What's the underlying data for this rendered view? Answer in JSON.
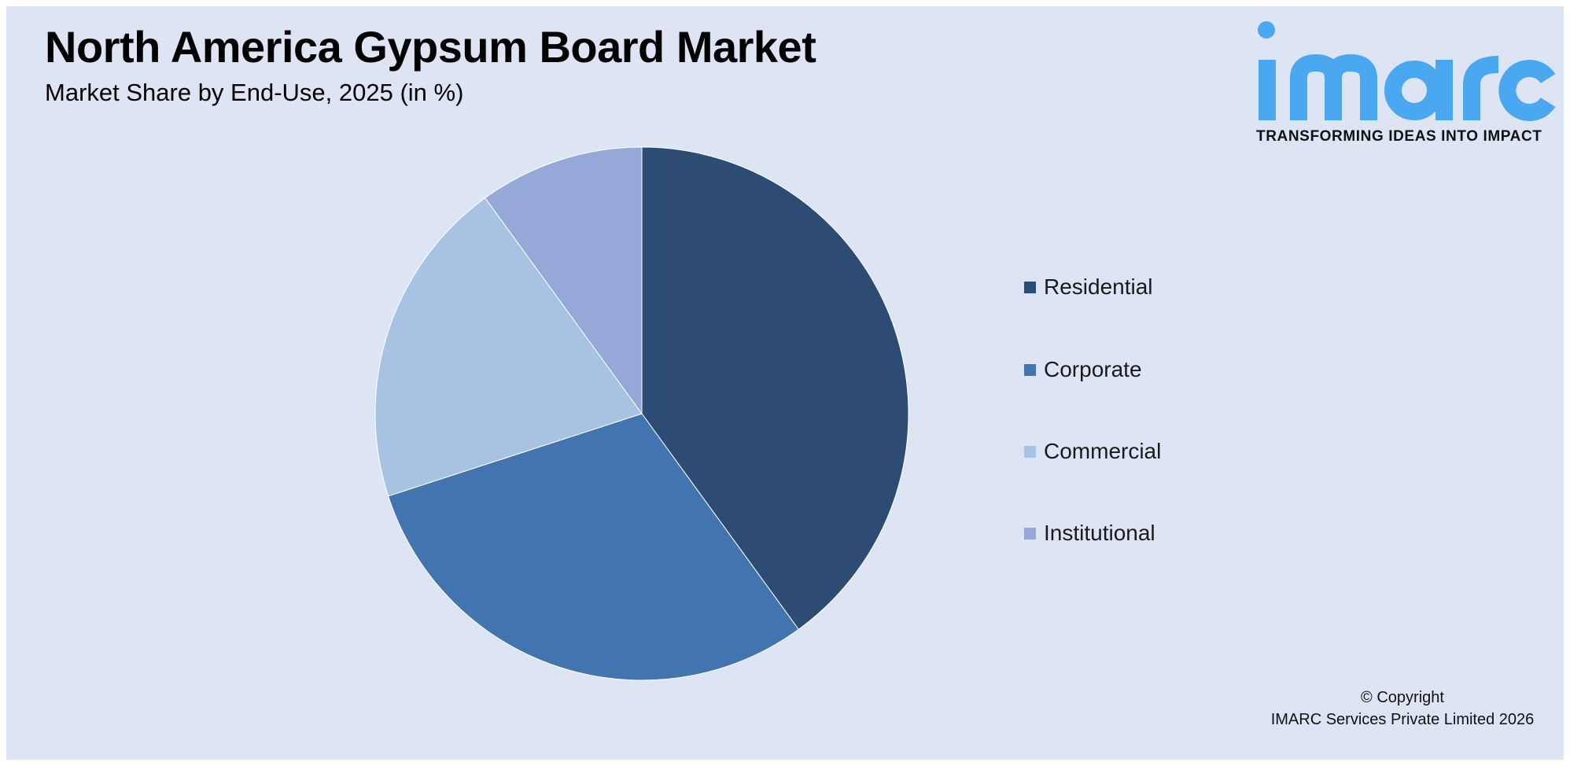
{
  "title": "North America Gypsum Board Market",
  "subtitle": "Market Share by End-Use, 2025 (in %)",
  "logo": {
    "text": "imarc",
    "tagline": "TRANSFORMING IDEAS INTO IMPACT",
    "color": "#4aa8f0"
  },
  "copyright": {
    "line1": "© Copyright",
    "line2": "IMARC Services Private Limited 2026"
  },
  "chart_data": {
    "type": "pie",
    "title": "North America Gypsum Board Market",
    "subtitle": "Market Share by End-Use, 2025 (in %)",
    "categories": [
      "Residential",
      "Corporate",
      "Commercial",
      "Institutional"
    ],
    "values": [
      40,
      30,
      20,
      10
    ],
    "colors": [
      "#2c4c74",
      "#4274b0",
      "#a7c2e2",
      "#95a9d9"
    ],
    "start_angle": "12 o'clock",
    "direction": "clockwise",
    "legend": "right",
    "data_labels": false
  }
}
